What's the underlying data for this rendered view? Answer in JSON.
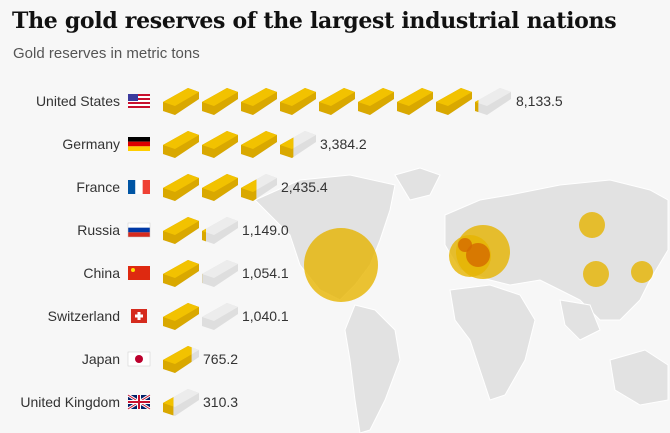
{
  "title": "The gold reserves of the largest industrial nations",
  "subtitle": "Gold reserves in metric tons",
  "colors": {
    "gold": "#f2c200",
    "gold_dark": "#d9a800",
    "empty_bar": "#dedede",
    "bubble": "#e6b400",
    "bubble_overlap": "#d46a00",
    "map": "#e2e2e2"
  },
  "chart_data": {
    "type": "pictogram",
    "unit_per_icon": 1000,
    "unit": "metric tons",
    "categories": [
      "United States",
      "Germany",
      "France",
      "Russia",
      "China",
      "Switzerland",
      "Japan",
      "United Kingdom"
    ],
    "flags": [
      "us-flag",
      "germany-flag",
      "france-flag",
      "russia-flag",
      "china-flag",
      "switzerland-flag",
      "japan-flag",
      "uk-flag"
    ],
    "values": [
      8133.5,
      3384.2,
      2435.4,
      1149.0,
      1054.1,
      1040.1,
      765.2,
      310.3
    ],
    "value_labels": [
      "8,133.5",
      "3,384.2",
      "2,435.4",
      "1,149.0",
      "1,054.1",
      "1,040.1",
      "765.2",
      "310.3"
    ],
    "map_bubbles": [
      "United States",
      "Germany",
      "France",
      "Russia",
      "China",
      "Switzerland",
      "Japan",
      "United Kingdom"
    ]
  }
}
